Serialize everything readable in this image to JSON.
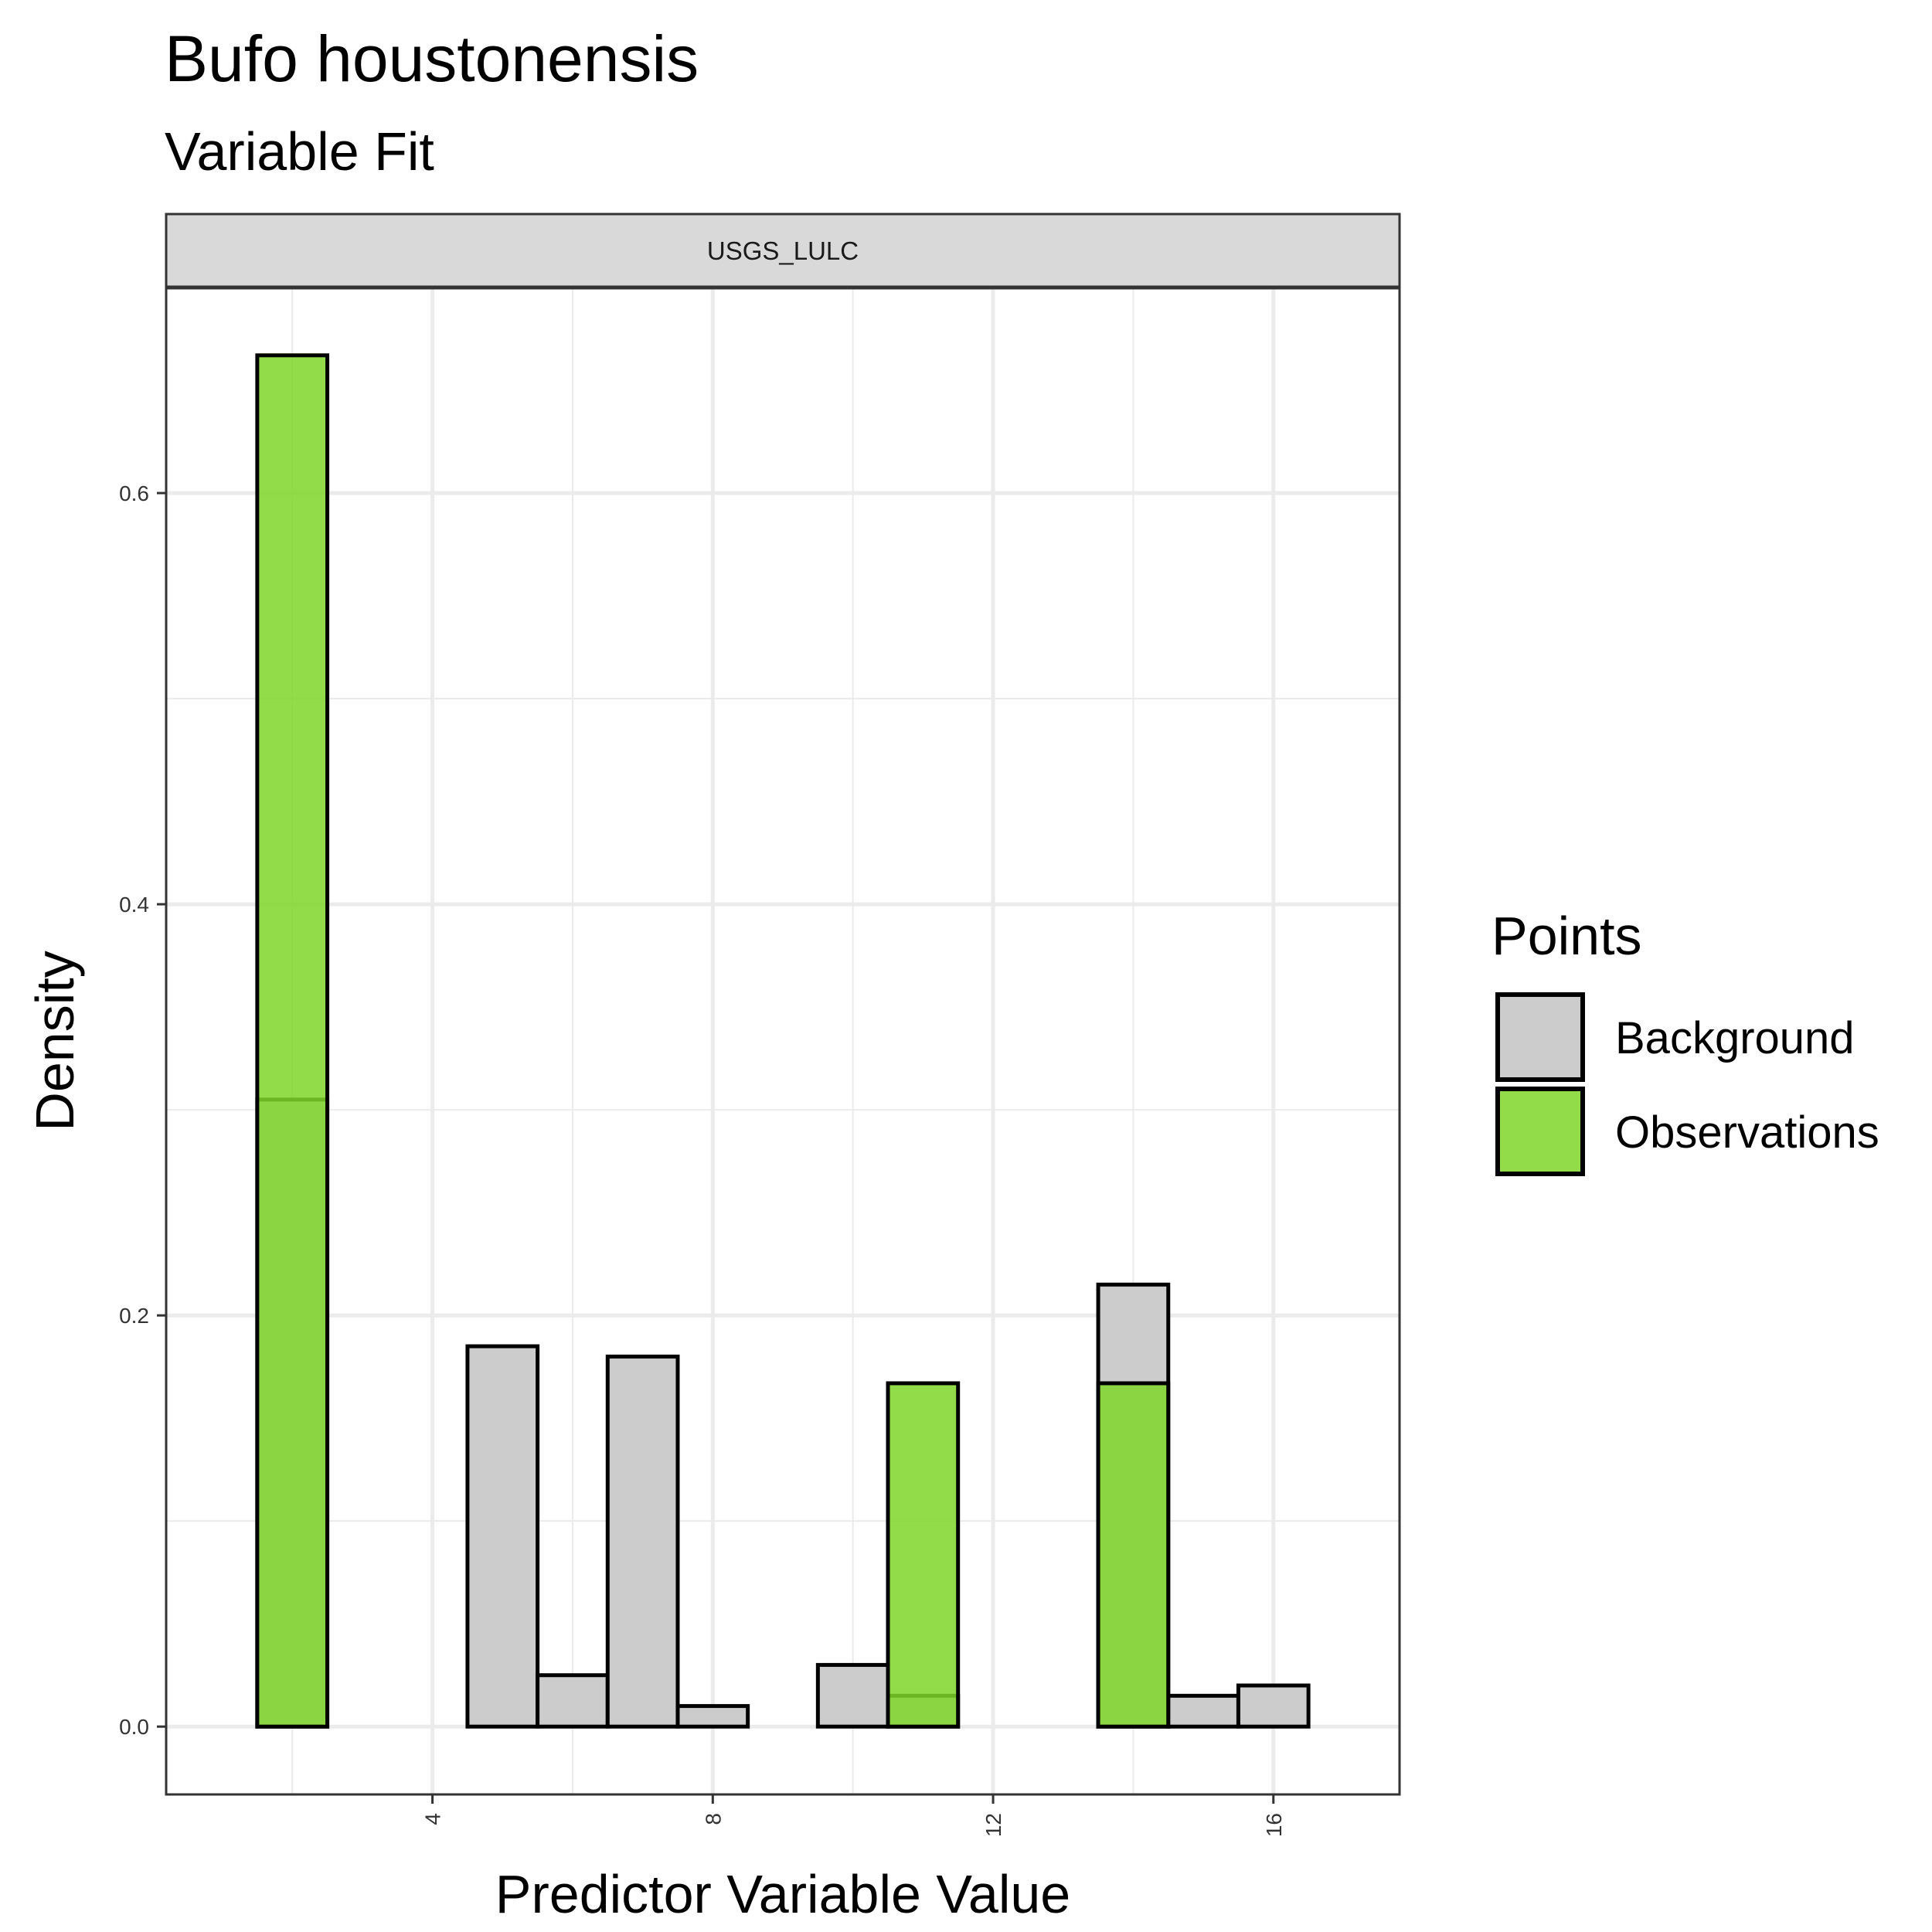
{
  "chart_data": {
    "type": "bar",
    "title": "Bufo houstonensis",
    "subtitle": "Variable Fit",
    "facet_label": "USGS_LULC",
    "xlabel": "Predictor Variable Value",
    "ylabel": "Density",
    "xlim": [
      0.2,
      17.8
    ],
    "ylim": [
      -0.033,
      0.7
    ],
    "x_ticks": [
      4,
      8,
      12,
      16
    ],
    "y_ticks": [
      0.0,
      0.2,
      0.4,
      0.6
    ],
    "y_tick_labels": [
      "0.0",
      "0.2",
      "0.4",
      "0.6"
    ],
    "bin_width": 1,
    "grid": true,
    "legend": {
      "title": "Points",
      "position": "right",
      "entries": [
        "Background",
        "Observations"
      ]
    },
    "series": [
      {
        "name": "Background",
        "color": "#cccccc",
        "bins": [
          {
            "x": 2,
            "value": 0.305
          },
          {
            "x": 3,
            "value": 0.0
          },
          {
            "x": 4,
            "value": 0.0
          },
          {
            "x": 5,
            "value": 0.185
          },
          {
            "x": 6,
            "value": 0.025
          },
          {
            "x": 7,
            "value": 0.18
          },
          {
            "x": 8,
            "value": 0.01
          },
          {
            "x": 9,
            "value": 0.0
          },
          {
            "x": 10,
            "value": 0.03
          },
          {
            "x": 11,
            "value": 0.015
          },
          {
            "x": 12,
            "value": 0.0
          },
          {
            "x": 13,
            "value": 0.0
          },
          {
            "x": 14,
            "value": 0.215
          },
          {
            "x": 15,
            "value": 0.015
          },
          {
            "x": 16,
            "value": 0.02
          }
        ]
      },
      {
        "name": "Observations",
        "color": "#7fd62a",
        "bins": [
          {
            "x": 2,
            "value": 0.667
          },
          {
            "x": 11,
            "value": 0.167
          },
          {
            "x": 14,
            "value": 0.167
          }
        ]
      }
    ]
  }
}
